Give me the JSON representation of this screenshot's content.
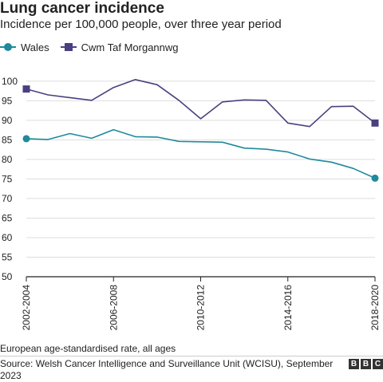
{
  "title": "Lung cancer incidence",
  "subtitle": "Incidence per 100,000 people, over three year period",
  "legend": [
    {
      "name": "Wales",
      "marker": "circle",
      "color": "#1f8a9c"
    },
    {
      "name": "Cwm Taf Morgannwg",
      "marker": "square",
      "color": "#4b3f80"
    }
  ],
  "footnote": "European age-standardised rate, all ages",
  "source": "Source: Welsh Cancer Intelligence and Surveillance Unit (WCISU), September 2023",
  "brand": {
    "letters": [
      "B",
      "B",
      "C"
    ]
  },
  "chart_data": {
    "type": "line",
    "x": [
      "2002-2004",
      "2003-2005",
      "2004-2006",
      "2005-2007",
      "2006-2008",
      "2007-2009",
      "2008-2010",
      "2009-2011",
      "2010-2012",
      "2011-2013",
      "2012-2014",
      "2013-2015",
      "2014-2016",
      "2015-2017",
      "2016-2018",
      "2017-2019",
      "2018-2020"
    ],
    "x_tick_labels": [
      "2002-2004",
      "2006-2008",
      "2010-2012",
      "2014-2016",
      "2018-2020"
    ],
    "y_ticks": [
      50,
      55,
      60,
      65,
      70,
      75,
      80,
      85,
      90,
      95,
      100
    ],
    "ylim": [
      50,
      102
    ],
    "grid": true,
    "series": [
      {
        "name": "Wales",
        "color": "#1f8a9c",
        "values": [
          85.3,
          85.1,
          86.6,
          85.4,
          87.6,
          85.8,
          85.7,
          84.6,
          84.5,
          84.4,
          82.9,
          82.6,
          81.9,
          80.1,
          79.3,
          77.7,
          75.2
        ]
      },
      {
        "name": "Cwm Taf Morgannwg",
        "color": "#4b3f80",
        "values": [
          98.0,
          96.5,
          95.8,
          95.1,
          98.4,
          100.4,
          99.1,
          95.1,
          90.4,
          94.7,
          95.2,
          95.1,
          89.3,
          88.4,
          93.5,
          93.6,
          89.3
        ]
      }
    ]
  }
}
